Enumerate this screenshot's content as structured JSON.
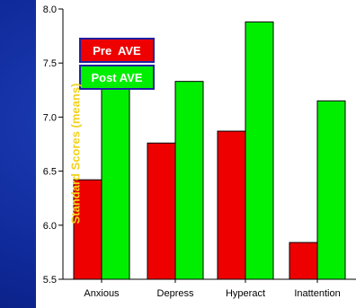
{
  "chart_data": {
    "type": "bar",
    "ylabel": "Standard Scores (means)",
    "xlabel": "",
    "ylim": [
      5.5,
      8.0
    ],
    "yticks": [
      "5.5",
      "6.0",
      "6.5",
      "7.0",
      "7.5",
      "8.0"
    ],
    "categories": [
      "Anxious",
      "Depress",
      "Hyperact",
      "Inattention"
    ],
    "series": [
      {
        "name": "Pre  AVE",
        "values": [
          6.42,
          6.76,
          6.87,
          5.84
        ],
        "color": "#ee0000"
      },
      {
        "name": "Post AVE",
        "values": [
          7.28,
          7.33,
          7.88,
          7.15
        ],
        "color": "#00ee00"
      }
    ],
    "legend_position": "top-left",
    "grid": false
  },
  "colors": {
    "background": "#1438a8",
    "ylabel_color": "#f2d21b",
    "plot_background": "#ffffff"
  }
}
